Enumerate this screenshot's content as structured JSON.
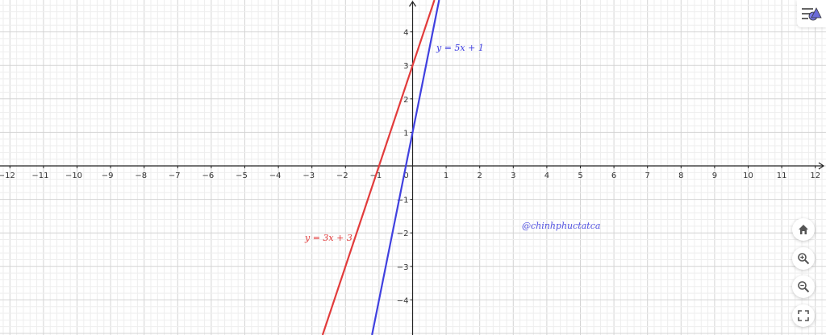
{
  "chart_data": {
    "type": "line",
    "xlim": [
      -12,
      12
    ],
    "ylim": [
      -5,
      5
    ],
    "grid": true,
    "x_ticks": [
      -12,
      -11,
      -10,
      -9,
      -8,
      -7,
      -6,
      -5,
      -4,
      -3,
      -2,
      -1,
      0,
      1,
      2,
      3,
      4,
      5,
      6,
      7,
      8,
      9,
      10,
      11,
      12
    ],
    "y_ticks": [
      -4,
      -3,
      -2,
      -1,
      1,
      2,
      3,
      4
    ],
    "series": [
      {
        "name": "y = 3x + 3",
        "slope": 3,
        "intercept": 3,
        "color": "#e23b3b"
      },
      {
        "name": "y = 5x + 1",
        "slope": 5,
        "intercept": 1,
        "color": "#4040e0"
      }
    ]
  },
  "watermark": "@chinhphuctatca",
  "controls": {
    "menu_icon": "algebra-menu-icon",
    "home_icon": "home-icon",
    "zoom_in_icon": "zoom-in-icon",
    "zoom_out_icon": "zoom-out-icon",
    "fullscreen_icon": "fullscreen-icon"
  }
}
